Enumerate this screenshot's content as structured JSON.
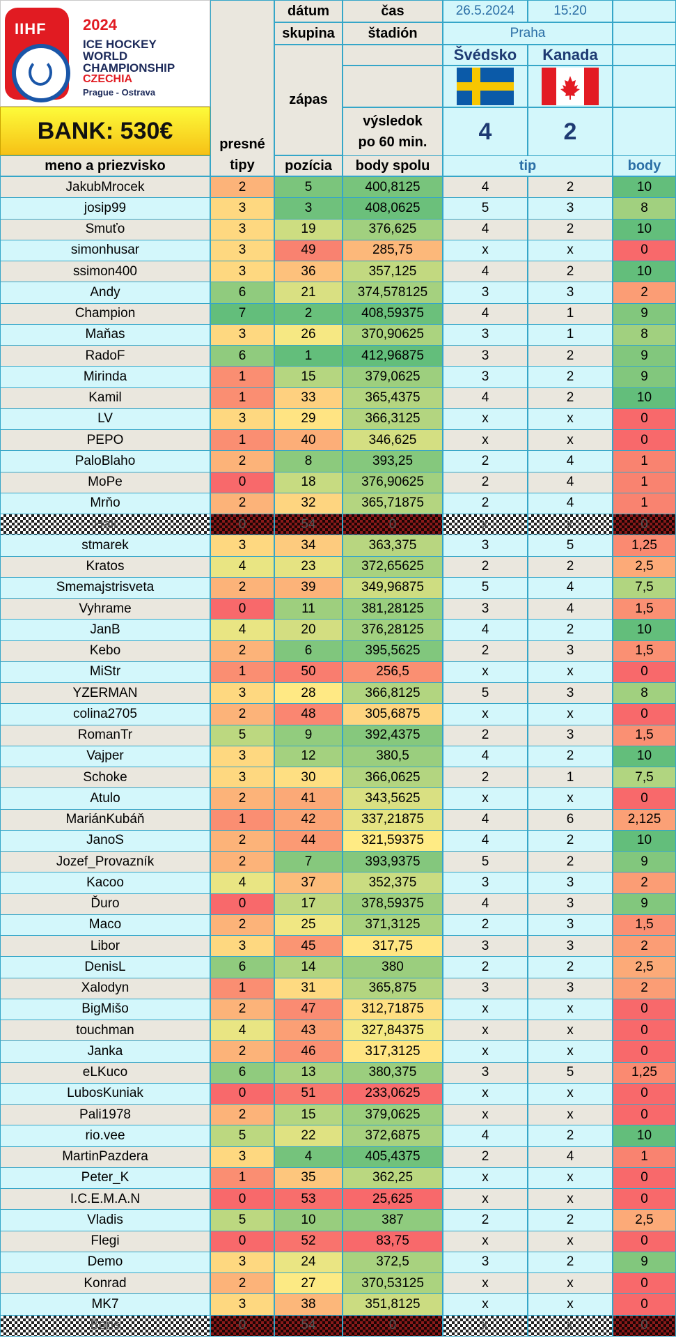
{
  "logo": {
    "brand": "IIHF",
    "year": "2024",
    "line1": "ICE HOCKEY",
    "line2": "WORLD",
    "line3": "CHAMPIONSHIP",
    "country": "CZECHIA",
    "cities": "Prague - Ostrava",
    "icon": "iihf-wave-icon"
  },
  "bank_label": "BANK: 530€",
  "header": {
    "datum_label": "dátum",
    "cas_label": "čas",
    "skupina_label": "skupina",
    "stadion_label": "štadión",
    "zapas_label": "zápas",
    "vysledok_label": "výsledok",
    "po60_label": "po 60 min.",
    "presne_label": "presné",
    "tipy_label": "tipy",
    "meno_label": "meno a priezvisko",
    "pozicia_label": "pozícia",
    "body_spolu_label": "body spolu",
    "tip_label": "tip",
    "body_label": "body"
  },
  "match": {
    "date": "26.5.2024",
    "time": "15:20",
    "venue": "Praha",
    "team_home": "Švédsko",
    "team_away": "Kanada",
    "score_home": "4",
    "score_away": "2",
    "flag_home": "sweden-flag-icon",
    "flag_away": "canada-flag-icon"
  },
  "colors": {
    "cyan": "#d3f7fb",
    "green": "#63be7b",
    "yellow": "#ffeb84",
    "red": "#f8696b",
    "border": "#35a6c8"
  },
  "rows": [
    {
      "name": "JakubMrocek",
      "presne": "2",
      "pozicia": "5",
      "body_spolu": "400,8125",
      "tip1": "4",
      "tip2": "2",
      "body": "10"
    },
    {
      "name": "josip99",
      "presne": "3",
      "pozicia": "3",
      "body_spolu": "408,0625",
      "tip1": "5",
      "tip2": "3",
      "body": "8"
    },
    {
      "name": "Smuťo",
      "presne": "3",
      "pozicia": "19",
      "body_spolu": "376,625",
      "tip1": "4",
      "tip2": "2",
      "body": "10"
    },
    {
      "name": "simonhusar",
      "presne": "3",
      "pozicia": "49",
      "body_spolu": "285,75",
      "tip1": "x",
      "tip2": "x",
      "body": "0"
    },
    {
      "name": "ssimon400",
      "presne": "3",
      "pozicia": "36",
      "body_spolu": "357,125",
      "tip1": "4",
      "tip2": "2",
      "body": "10"
    },
    {
      "name": "Andy",
      "presne": "6",
      "pozicia": "21",
      "body_spolu": "374,578125",
      "tip1": "3",
      "tip2": "3",
      "body": "2"
    },
    {
      "name": "Champion",
      "presne": "7",
      "pozicia": "2",
      "body_spolu": "408,59375",
      "tip1": "4",
      "tip2": "1",
      "body": "9"
    },
    {
      "name": "Maňas",
      "presne": "3",
      "pozicia": "26",
      "body_spolu": "370,90625",
      "tip1": "3",
      "tip2": "1",
      "body": "8"
    },
    {
      "name": "RadoF",
      "presne": "6",
      "pozicia": "1",
      "body_spolu": "412,96875",
      "tip1": "3",
      "tip2": "2",
      "body": "9"
    },
    {
      "name": "Mirinda",
      "presne": "1",
      "pozicia": "15",
      "body_spolu": "379,0625",
      "tip1": "3",
      "tip2": "2",
      "body": "9"
    },
    {
      "name": "Kamil",
      "presne": "1",
      "pozicia": "33",
      "body_spolu": "365,4375",
      "tip1": "4",
      "tip2": "2",
      "body": "10"
    },
    {
      "name": "LV",
      "presne": "3",
      "pozicia": "29",
      "body_spolu": "366,3125",
      "tip1": "x",
      "tip2": "x",
      "body": "0"
    },
    {
      "name": "PEPO",
      "presne": "1",
      "pozicia": "40",
      "body_spolu": "346,625",
      "tip1": "x",
      "tip2": "x",
      "body": "0"
    },
    {
      "name": "PaloBlaho",
      "presne": "2",
      "pozicia": "8",
      "body_spolu": "393,25",
      "tip1": "2",
      "tip2": "4",
      "body": "1"
    },
    {
      "name": "MoPe",
      "presne": "0",
      "pozicia": "18",
      "body_spolu": "376,90625",
      "tip1": "2",
      "tip2": "4",
      "body": "1"
    },
    {
      "name": "Mrňo",
      "presne": "2",
      "pozicia": "32",
      "body_spolu": "365,71875",
      "tip1": "2",
      "tip2": "4",
      "body": "1"
    },
    {
      "name": "Hali",
      "presne": "0",
      "pozicia": "54",
      "body_spolu": "0",
      "tip1": "x",
      "tip2": "x",
      "body": "0",
      "dropped": true
    },
    {
      "name": "stmarek",
      "presne": "3",
      "pozicia": "34",
      "body_spolu": "363,375",
      "tip1": "3",
      "tip2": "5",
      "body": "1,25"
    },
    {
      "name": "Kratos",
      "presne": "4",
      "pozicia": "23",
      "body_spolu": "372,65625",
      "tip1": "2",
      "tip2": "2",
      "body": "2,5"
    },
    {
      "name": "Smemajstrisveta",
      "presne": "2",
      "pozicia": "39",
      "body_spolu": "349,96875",
      "tip1": "5",
      "tip2": "4",
      "body": "7,5"
    },
    {
      "name": "Vyhrame",
      "presne": "0",
      "pozicia": "11",
      "body_spolu": "381,28125",
      "tip1": "3",
      "tip2": "4",
      "body": "1,5"
    },
    {
      "name": "JanB",
      "presne": "4",
      "pozicia": "20",
      "body_spolu": "376,28125",
      "tip1": "4",
      "tip2": "2",
      "body": "10"
    },
    {
      "name": "Kebo",
      "presne": "2",
      "pozicia": "6",
      "body_spolu": "395,5625",
      "tip1": "2",
      "tip2": "3",
      "body": "1,5"
    },
    {
      "name": "MiStr",
      "presne": "1",
      "pozicia": "50",
      "body_spolu": "256,5",
      "tip1": "x",
      "tip2": "x",
      "body": "0"
    },
    {
      "name": "YZERMAN",
      "presne": "3",
      "pozicia": "28",
      "body_spolu": "366,8125",
      "tip1": "5",
      "tip2": "3",
      "body": "8"
    },
    {
      "name": "colina2705",
      "presne": "2",
      "pozicia": "48",
      "body_spolu": "305,6875",
      "tip1": "x",
      "tip2": "x",
      "body": "0"
    },
    {
      "name": "RomanTr",
      "presne": "5",
      "pozicia": "9",
      "body_spolu": "392,4375",
      "tip1": "2",
      "tip2": "3",
      "body": "1,5"
    },
    {
      "name": "Vajper",
      "presne": "3",
      "pozicia": "12",
      "body_spolu": "380,5",
      "tip1": "4",
      "tip2": "2",
      "body": "10"
    },
    {
      "name": "Schoke",
      "presne": "3",
      "pozicia": "30",
      "body_spolu": "366,0625",
      "tip1": "2",
      "tip2": "1",
      "body": "7,5"
    },
    {
      "name": "Atulo",
      "presne": "2",
      "pozicia": "41",
      "body_spolu": "343,5625",
      "tip1": "x",
      "tip2": "x",
      "body": "0"
    },
    {
      "name": "MariánKubáň",
      "presne": "1",
      "pozicia": "42",
      "body_spolu": "337,21875",
      "tip1": "4",
      "tip2": "6",
      "body": "2,125"
    },
    {
      "name": "JanoS",
      "presne": "2",
      "pozicia": "44",
      "body_spolu": "321,59375",
      "tip1": "4",
      "tip2": "2",
      "body": "10"
    },
    {
      "name": "Jozef_Provazník",
      "presne": "2",
      "pozicia": "7",
      "body_spolu": "393,9375",
      "tip1": "5",
      "tip2": "2",
      "body": "9"
    },
    {
      "name": "Kacoo",
      "presne": "4",
      "pozicia": "37",
      "body_spolu": "352,375",
      "tip1": "3",
      "tip2": "3",
      "body": "2"
    },
    {
      "name": "Ďuro",
      "presne": "0",
      "pozicia": "17",
      "body_spolu": "378,59375",
      "tip1": "4",
      "tip2": "3",
      "body": "9"
    },
    {
      "name": "Maco",
      "presne": "2",
      "pozicia": "25",
      "body_spolu": "371,3125",
      "tip1": "2",
      "tip2": "3",
      "body": "1,5"
    },
    {
      "name": "Libor",
      "presne": "3",
      "pozicia": "45",
      "body_spolu": "317,75",
      "tip1": "3",
      "tip2": "3",
      "body": "2"
    },
    {
      "name": "DenisL",
      "presne": "6",
      "pozicia": "14",
      "body_spolu": "380",
      "tip1": "2",
      "tip2": "2",
      "body": "2,5"
    },
    {
      "name": "Xalodyn",
      "presne": "1",
      "pozicia": "31",
      "body_spolu": "365,875",
      "tip1": "3",
      "tip2": "3",
      "body": "2"
    },
    {
      "name": "BigMišo",
      "presne": "2",
      "pozicia": "47",
      "body_spolu": "312,71875",
      "tip1": "x",
      "tip2": "x",
      "body": "0"
    },
    {
      "name": "touchman",
      "presne": "4",
      "pozicia": "43",
      "body_spolu": "327,84375",
      "tip1": "x",
      "tip2": "x",
      "body": "0"
    },
    {
      "name": "Janka",
      "presne": "2",
      "pozicia": "46",
      "body_spolu": "317,3125",
      "tip1": "x",
      "tip2": "x",
      "body": "0"
    },
    {
      "name": "eLKuco",
      "presne": "6",
      "pozicia": "13",
      "body_spolu": "380,375",
      "tip1": "3",
      "tip2": "5",
      "body": "1,25"
    },
    {
      "name": "LubosKuniak",
      "presne": "0",
      "pozicia": "51",
      "body_spolu": "233,0625",
      "tip1": "x",
      "tip2": "x",
      "body": "0"
    },
    {
      "name": "Pali1978",
      "presne": "2",
      "pozicia": "15",
      "body_spolu": "379,0625",
      "tip1": "x",
      "tip2": "x",
      "body": "0"
    },
    {
      "name": "rio.vee",
      "presne": "5",
      "pozicia": "22",
      "body_spolu": "372,6875",
      "tip1": "4",
      "tip2": "2",
      "body": "10"
    },
    {
      "name": "MartinPazdera",
      "presne": "3",
      "pozicia": "4",
      "body_spolu": "405,4375",
      "tip1": "2",
      "tip2": "4",
      "body": "1"
    },
    {
      "name": "Peter_K",
      "presne": "1",
      "pozicia": "35",
      "body_spolu": "362,25",
      "tip1": "x",
      "tip2": "x",
      "body": "0"
    },
    {
      "name": "I.C.E.M.A.N",
      "presne": "0",
      "pozicia": "53",
      "body_spolu": "25,625",
      "tip1": "x",
      "tip2": "x",
      "body": "0"
    },
    {
      "name": "Vladis",
      "presne": "5",
      "pozicia": "10",
      "body_spolu": "387",
      "tip1": "2",
      "tip2": "2",
      "body": "2,5"
    },
    {
      "name": "Flegi",
      "presne": "0",
      "pozicia": "52",
      "body_spolu": "83,75",
      "tip1": "x",
      "tip2": "x",
      "body": "0"
    },
    {
      "name": "Demo",
      "presne": "3",
      "pozicia": "24",
      "body_spolu": "372,5",
      "tip1": "3",
      "tip2": "2",
      "body": "9"
    },
    {
      "name": "Konrad",
      "presne": "2",
      "pozicia": "27",
      "body_spolu": "370,53125",
      "tip1": "x",
      "tip2": "x",
      "body": "0"
    },
    {
      "name": "MK7",
      "presne": "3",
      "pozicia": "38",
      "body_spolu": "351,8125",
      "tip1": "x",
      "tip2": "x",
      "body": "0"
    },
    {
      "name": "Boris",
      "presne": "0",
      "pozicia": "54",
      "body_spolu": "0",
      "tip1": "x",
      "tip2": "x",
      "body": "0",
      "dropped": true
    }
  ]
}
